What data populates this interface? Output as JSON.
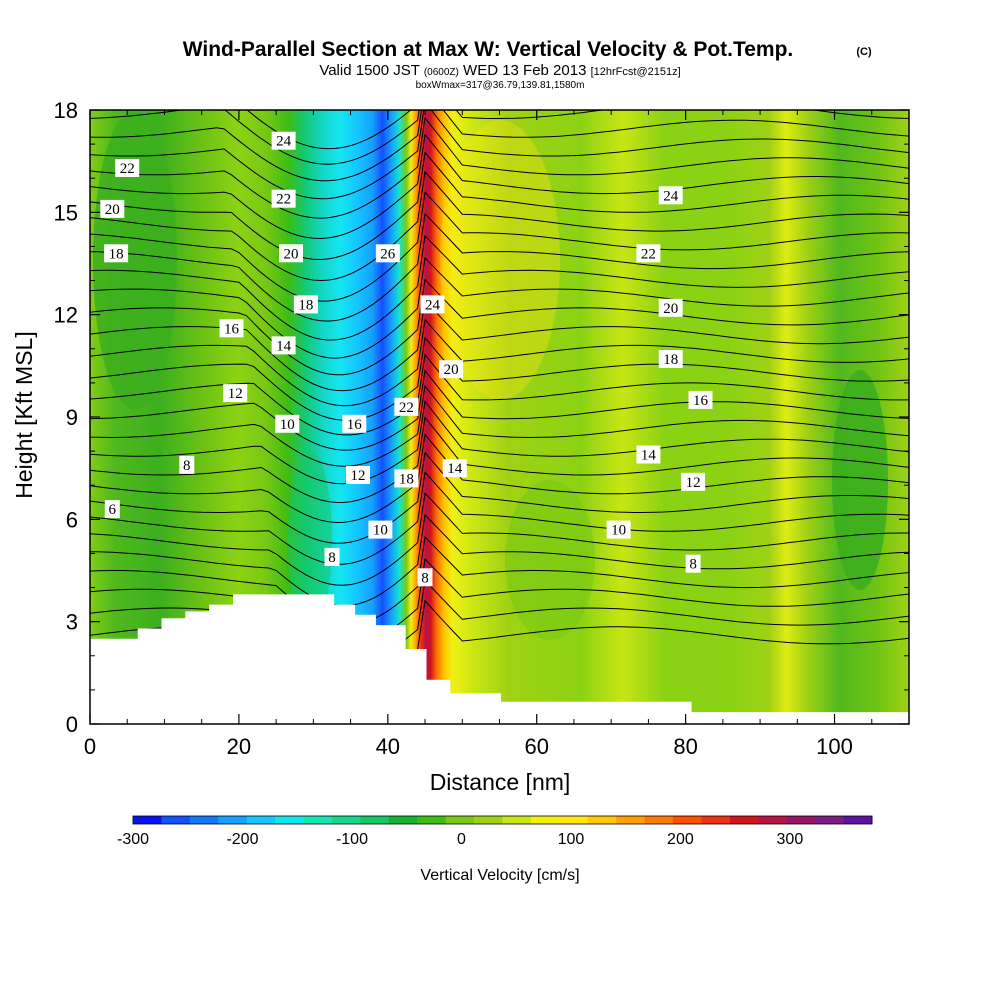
{
  "chart_data": {
    "type": "contour",
    "title": "Wind-Parallel Section at Max W: Vertical Velocity & Pot.Temp.",
    "title_suffix": "(C)",
    "subtitle_parts": [
      "Valid 1500 JST",
      "(0600Z)",
      "WED 13 Feb 2013",
      "[12hrFcst@2151z]"
    ],
    "subtitle2": "boxWmax=317@36.79,139.81,1580m",
    "xlabel": "Distance [nm]",
    "ylabel": "Height [Kft MSL]",
    "xlim": [
      0,
      110
    ],
    "ylim": [
      0,
      18
    ],
    "x_ticks": [
      "0",
      "20",
      "40",
      "60",
      "80",
      "100"
    ],
    "y_ticks": [
      "0",
      "3",
      "6",
      "9",
      "12",
      "15",
      "18"
    ],
    "colorbar": {
      "label": "Vertical Velocity [cm/s]",
      "range": [
        -300,
        375
      ],
      "ticks": [
        "-300",
        "-200",
        "-100",
        "0",
        "100",
        "200",
        "300"
      ],
      "colors": [
        "#0a14f0",
        "#1450ff",
        "#1478ff",
        "#14a0ff",
        "#14c8ff",
        "#14e6f0",
        "#14e6b4",
        "#14d78c",
        "#14c864",
        "#14b432",
        "#3cbe14",
        "#78c814",
        "#a0d214",
        "#c8e614",
        "#f0f014",
        "#ffe614",
        "#ffc800",
        "#ffa000",
        "#ff7800",
        "#ff5000",
        "#f03214",
        "#d2141e",
        "#b41446",
        "#961464",
        "#781e82",
        "#5a14a0"
      ]
    },
    "velocity_features": [
      {
        "kind": "downdraft",
        "x_center": 38,
        "min_value": -300
      },
      {
        "kind": "updraft",
        "x_center": 45,
        "max_value": 317
      },
      {
        "kind": "weak_downdraft",
        "x_center": 5,
        "value": -100
      },
      {
        "kind": "weak_downdraft",
        "x_center": 102,
        "value": -100
      }
    ],
    "contour_labels": [
      {
        "text": "22",
        "x": 5,
        "y": 16.3
      },
      {
        "text": "20",
        "x": 3,
        "y": 15.1
      },
      {
        "text": "18",
        "x": 3.5,
        "y": 13.8
      },
      {
        "text": "24",
        "x": 26,
        "y": 17.1
      },
      {
        "text": "22",
        "x": 26,
        "y": 15.4
      },
      {
        "text": "20",
        "x": 27,
        "y": 13.8
      },
      {
        "text": "26",
        "x": 40,
        "y": 13.8
      },
      {
        "text": "18",
        "x": 29,
        "y": 12.3
      },
      {
        "text": "24",
        "x": 46,
        "y": 12.3
      },
      {
        "text": "16",
        "x": 19,
        "y": 11.6
      },
      {
        "text": "14",
        "x": 26,
        "y": 11.1
      },
      {
        "text": "20",
        "x": 48.5,
        "y": 10.4
      },
      {
        "text": "12",
        "x": 19.5,
        "y": 9.7
      },
      {
        "text": "22",
        "x": 42.5,
        "y": 9.3
      },
      {
        "text": "10",
        "x": 26.5,
        "y": 8.8
      },
      {
        "text": "16",
        "x": 35.5,
        "y": 8.8
      },
      {
        "text": "8",
        "x": 13,
        "y": 7.6
      },
      {
        "text": "14",
        "x": 49,
        "y": 7.5
      },
      {
        "text": "12",
        "x": 36,
        "y": 7.3
      },
      {
        "text": "18",
        "x": 42.5,
        "y": 7.2
      },
      {
        "text": "6",
        "x": 3,
        "y": 6.3
      },
      {
        "text": "10",
        "x": 39,
        "y": 5.7
      },
      {
        "text": "8",
        "x": 32.5,
        "y": 4.9
      },
      {
        "text": "8",
        "x": 45,
        "y": 4.3
      },
      {
        "text": "24",
        "x": 78,
        "y": 15.5
      },
      {
        "text": "22",
        "x": 75,
        "y": 13.8
      },
      {
        "text": "20",
        "x": 78,
        "y": 12.2
      },
      {
        "text": "18",
        "x": 78,
        "y": 10.7
      },
      {
        "text": "16",
        "x": 82,
        "y": 9.5
      },
      {
        "text": "14",
        "x": 75,
        "y": 7.9
      },
      {
        "text": "12",
        "x": 81,
        "y": 7.1
      },
      {
        "text": "10",
        "x": 71,
        "y": 5.7
      },
      {
        "text": "8",
        "x": 81,
        "y": 4.7
      }
    ],
    "terrain": [
      [
        0,
        2.5
      ],
      [
        6.4,
        2.5
      ],
      [
        6.4,
        2.8
      ],
      [
        9.6,
        2.8
      ],
      [
        9.6,
        3.1
      ],
      [
        12.8,
        3.1
      ],
      [
        12.8,
        3.3
      ],
      [
        16,
        3.3
      ],
      [
        16,
        3.5
      ],
      [
        19.2,
        3.5
      ],
      [
        19.2,
        3.8
      ],
      [
        32.8,
        3.8
      ],
      [
        32.8,
        3.5
      ],
      [
        35.6,
        3.5
      ],
      [
        35.6,
        3.2
      ],
      [
        38.4,
        3.2
      ],
      [
        38.4,
        2.9
      ],
      [
        42.4,
        2.9
      ],
      [
        42.4,
        2.2
      ],
      [
        45.2,
        2.2
      ],
      [
        45.2,
        1.3
      ],
      [
        48.4,
        1.3
      ],
      [
        48.4,
        0.9
      ],
      [
        55.2,
        0.9
      ],
      [
        55.2,
        0.65
      ],
      [
        80.8,
        0.65
      ],
      [
        80.8,
        0.35
      ],
      [
        110,
        0.35
      ]
    ]
  }
}
